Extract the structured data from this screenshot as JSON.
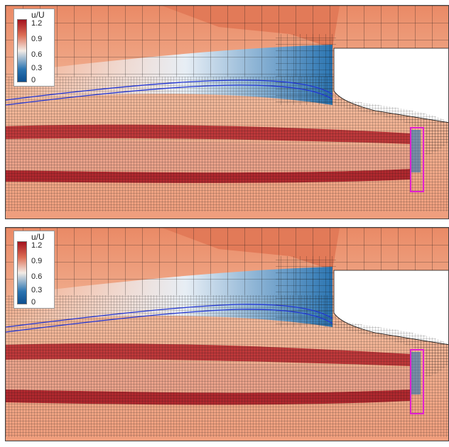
{
  "legend": {
    "title": "u/U",
    "ticks": [
      "1.2",
      "0.9",
      "0.6",
      "0.3",
      "0"
    ]
  },
  "colors": {
    "max": "#a4121e",
    "high": "#dd6f56",
    "mid": "#f3ece6",
    "low": "#2b75b2",
    "min": "#0d4e8f",
    "mesh": "#111111",
    "streamline": "#2337d6",
    "probe_box": "#e020d0",
    "solid_body": "#ffffff"
  },
  "panels": [
    {
      "id": "top",
      "shows_legend": true
    },
    {
      "id": "bottom",
      "shows_legend": true
    }
  ]
}
